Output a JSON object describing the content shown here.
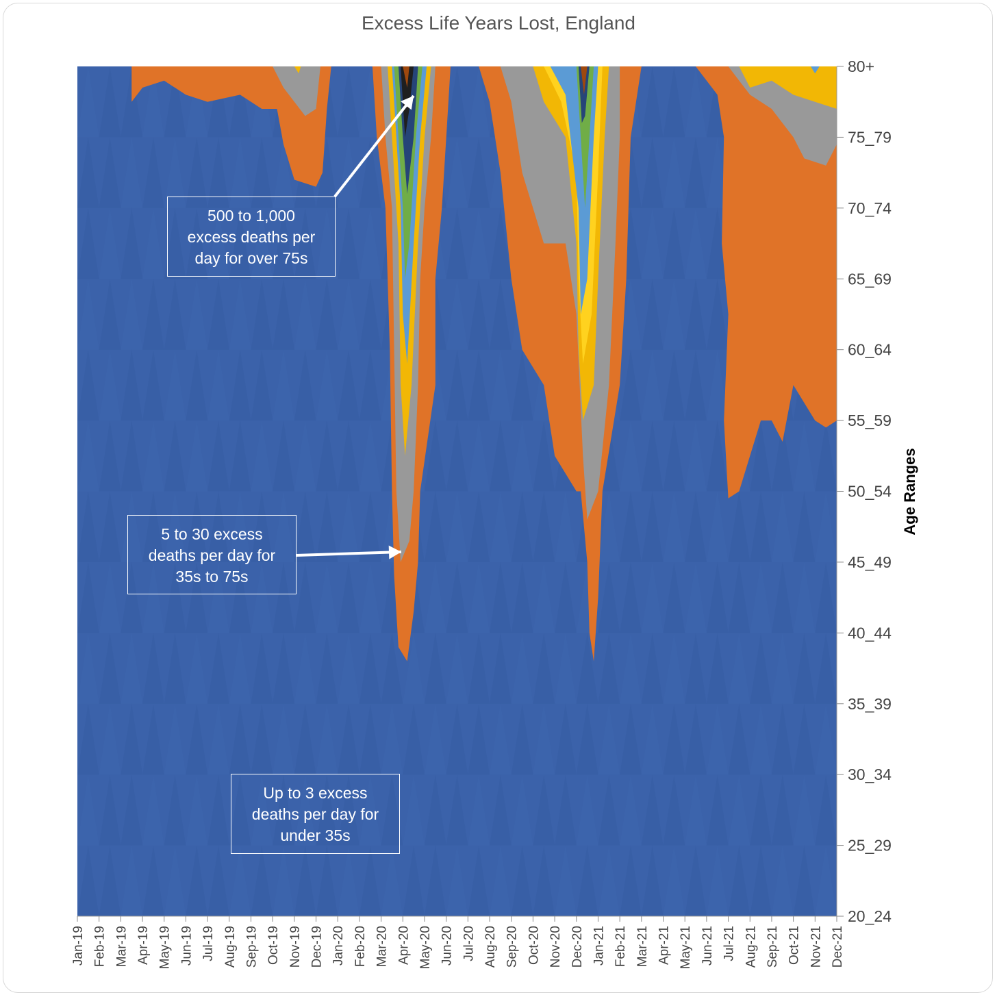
{
  "chart_data": {
    "type": "heatmap",
    "title": "Excess Life Years Lost, England",
    "xlabel": "",
    "ylabel": "Age Ranges",
    "x_categories": [
      "Jan-19",
      "Feb-19",
      "Mar-19",
      "Apr-19",
      "May-19",
      "Jun-19",
      "Jul-19",
      "Aug-19",
      "Sep-19",
      "Oct-19",
      "Nov-19",
      "Dec-19",
      "Jan-20",
      "Feb-20",
      "Mar-20",
      "Apr-20",
      "May-20",
      "Jun-20",
      "Jul-20",
      "Aug-20",
      "Sep-20",
      "Oct-20",
      "Nov-20",
      "Dec-20",
      "Jan-21",
      "Feb-21",
      "Mar-21",
      "Apr-21",
      "May-21",
      "Jun-21",
      "Jul-21",
      "Aug-21",
      "Sep-21",
      "Oct-21",
      "Nov-21",
      "Dec-21"
    ],
    "y_categories": [
      "20_24",
      "25_29",
      "30_34",
      "35_39",
      "40_44",
      "45_49",
      "50_54",
      "55_59",
      "60_64",
      "65_69",
      "70_74",
      "75_79",
      "80+"
    ],
    "level_colors": [
      "#3b62aa",
      "#e07328",
      "#999999",
      "#f2b705",
      "#ffd21f",
      "#5b9bd5",
      "#70ad47",
      "#264478",
      "#9e480e",
      "#1f1f1f"
    ],
    "bands": [
      {
        "level": 1,
        "name_hint": "orange",
        "dates_upper": [
          3.5,
          4.2,
          5.0,
          5.8,
          6.6,
          7.5,
          8.2,
          8.6,
          9.0,
          9.2,
          9.3,
          9.6,
          9.8,
          10.0,
          10.3,
          10.6,
          10.8,
          11.0,
          11.6
        ]
      },
      {
        "level": 1,
        "dates_range": "Mar-20 to May-20",
        "age_from": "40_44",
        "age_to": "80+"
      },
      {
        "level": 1,
        "dates_range": "Aug-20 to Feb-21",
        "age_from": "40_44",
        "age_to": "80+"
      },
      {
        "level": 1,
        "dates_range": "May-21 to Dec-21",
        "age_from": "50_54",
        "age_to": "80+"
      }
    ],
    "annotations": [
      {
        "lines": [
          "500 to 1,000",
          "excess deaths per",
          "day for over 75s"
        ]
      },
      {
        "lines": [
          "5 to 30 excess",
          "deaths per day for",
          "35s to 75s"
        ]
      },
      {
        "lines": [
          "Up to 3 excess",
          "deaths per day for",
          "under 35s"
        ]
      }
    ]
  }
}
